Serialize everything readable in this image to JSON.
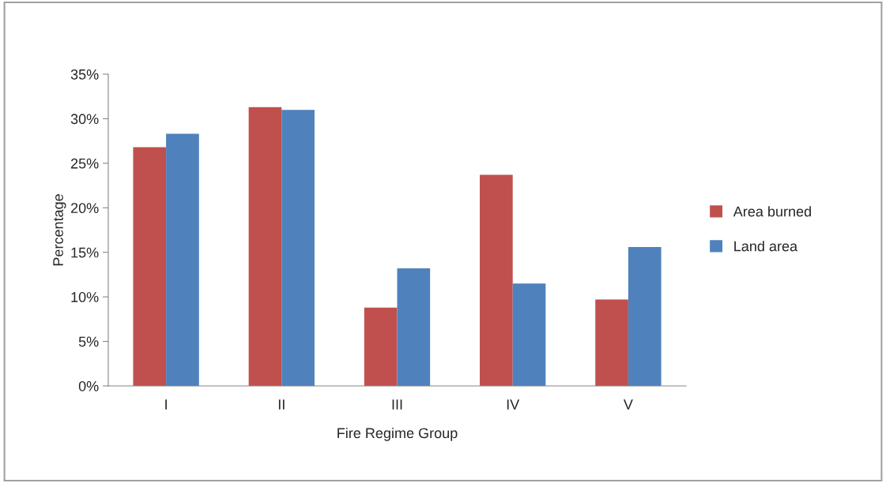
{
  "chart_data": {
    "type": "bar",
    "xlabel": "Fire Regime Group",
    "ylabel": "Percentage",
    "categories": [
      "I",
      "II",
      "III",
      "IV",
      "V"
    ],
    "series": [
      {
        "name": "Area burned",
        "color": "#c0504d",
        "values": [
          26.8,
          31.3,
          8.8,
          23.7,
          9.7
        ]
      },
      {
        "name": "Land area",
        "color": "#4f81bd",
        "values": [
          28.3,
          31.0,
          13.2,
          11.5,
          15.6
        ]
      }
    ],
    "ylim": [
      0,
      35
    ],
    "yticks": [
      {
        "value": 0,
        "label": "0%"
      },
      {
        "value": 5,
        "label": "5%"
      },
      {
        "value": 10,
        "label": "10%"
      },
      {
        "value": 15,
        "label": "15%"
      },
      {
        "value": 20,
        "label": "20%"
      },
      {
        "value": 25,
        "label": "25%"
      },
      {
        "value": 30,
        "label": "30%"
      },
      {
        "value": 35,
        "label": "35%"
      }
    ],
    "grid": false,
    "legend": "right"
  }
}
